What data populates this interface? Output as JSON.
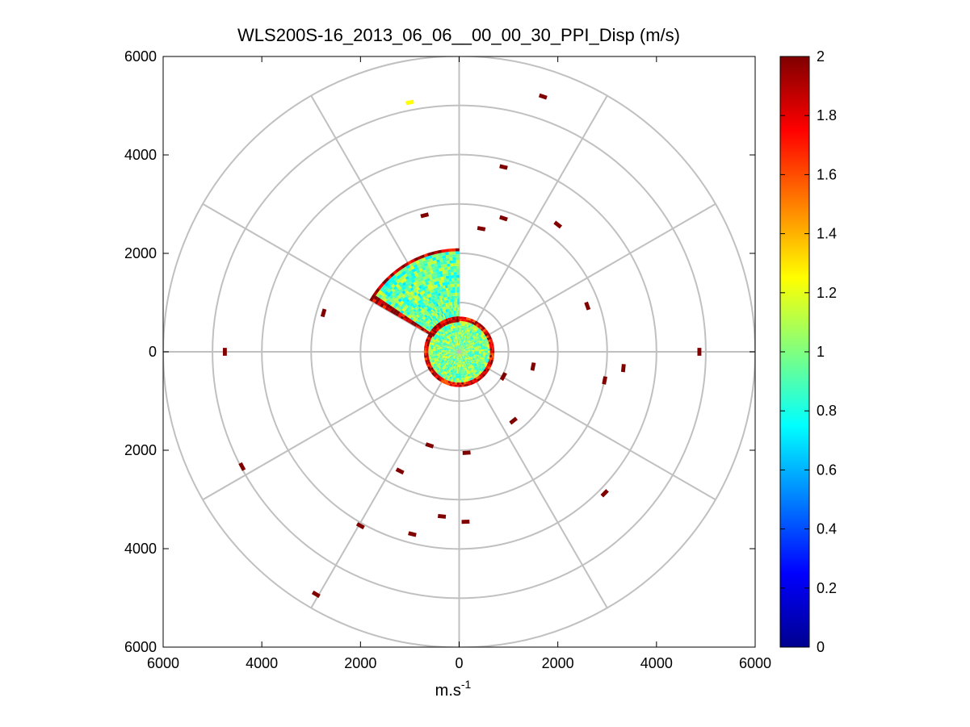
{
  "chart_data": {
    "type": "heatmap",
    "subtype": "polar-ppi",
    "title": "WLS200S-16_2013_06_06__00_00_30_PPI_Disp (m/s)",
    "xlabel": "m.s",
    "xlabel_superscript": "-1",
    "ylabel": "",
    "xlim": [
      -6000,
      6000
    ],
    "ylim": [
      -6000,
      6000
    ],
    "x_tick_labels": [
      "6000",
      "4000",
      "2000",
      "0",
      "2000",
      "4000",
      "6000"
    ],
    "y_tick_labels": [
      "6000",
      "4000",
      "2000",
      "0",
      "2000",
      "4000",
      "6000"
    ],
    "range_rings_m": [
      1000,
      2000,
      3000,
      4000,
      5000,
      6000
    ],
    "spoke_angles_deg": [
      0,
      30,
      60,
      90,
      120,
      150,
      180,
      210,
      240,
      270,
      300,
      330
    ],
    "colorbar": {
      "min": 0,
      "max": 2,
      "tick_labels": [
        "0",
        "0.2",
        "0.4",
        "0.6",
        "0.8",
        "1",
        "1.2",
        "1.4",
        "1.6",
        "1.8",
        "2"
      ],
      "colormap": "jet"
    },
    "near_field_disc": {
      "radius_m": 700,
      "typical_value": 1.0,
      "edge_value": 1.8
    },
    "sector": {
      "from_azimuth_deg": 300,
      "to_azimuth_deg": 360,
      "inner_m": 600,
      "outer_m": 2100,
      "typical_value": 0.95,
      "edge_value": 1.9
    },
    "returns": [
      {
        "x": 900,
        "y": 3750,
        "value": 2.0
      },
      {
        "x": 1700,
        "y": 5180,
        "value": 2.0
      },
      {
        "x": -1000,
        "y": 5060,
        "value": 1.25
      },
      {
        "x": 2000,
        "y": 2580,
        "value": 2.0
      },
      {
        "x": 900,
        "y": 2710,
        "value": 2.0
      },
      {
        "x": 450,
        "y": 2500,
        "value": 2.0
      },
      {
        "x": -700,
        "y": 2770,
        "value": 2.0
      },
      {
        "x": 2600,
        "y": 930,
        "value": 2.0
      },
      {
        "x": -2750,
        "y": 790,
        "value": 2.0
      },
      {
        "x": 4870,
        "y": 0,
        "value": 2.0
      },
      {
        "x": -4750,
        "y": 0,
        "value": 2.0
      },
      {
        "x": 3330,
        "y": -330,
        "value": 2.0
      },
      {
        "x": 2950,
        "y": -580,
        "value": 2.0
      },
      {
        "x": -4400,
        "y": -2330,
        "value": 2.0
      },
      {
        "x": -1200,
        "y": -2420,
        "value": 2.0
      },
      {
        "x": 2950,
        "y": -2870,
        "value": 2.0
      },
      {
        "x": -350,
        "y": -3340,
        "value": 2.0
      },
      {
        "x": 130,
        "y": -3450,
        "value": 2.0
      },
      {
        "x": -2000,
        "y": -3530,
        "value": 2.0
      },
      {
        "x": -950,
        "y": -3700,
        "value": 2.0
      },
      {
        "x": -2900,
        "y": -4920,
        "value": 2.0
      },
      {
        "x": 1100,
        "y": -1400,
        "value": 2.0
      },
      {
        "x": 150,
        "y": -2050,
        "value": 2.0
      },
      {
        "x": -600,
        "y": -1900,
        "value": 2.0
      },
      {
        "x": 1500,
        "y": -300,
        "value": 2.0
      },
      {
        "x": 900,
        "y": -500,
        "value": 2.0
      }
    ]
  }
}
